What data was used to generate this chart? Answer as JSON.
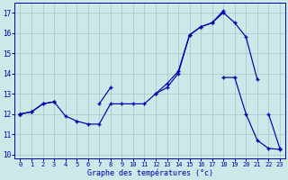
{
  "xlabel": "Graphe des températures (°c)",
  "background_color": "#cce8e8",
  "grid_color": "#aacccc",
  "line_color": "#0000aa",
  "hours": [
    0,
    1,
    2,
    3,
    4,
    5,
    6,
    7,
    8,
    9,
    10,
    11,
    12,
    13,
    14,
    15,
    16,
    17,
    18,
    19,
    20,
    21,
    22,
    23
  ],
  "curve1": [
    12.0,
    12.1,
    12.5,
    12.6,
    11.9,
    11.65,
    11.5,
    11.5,
    12.5,
    12.5,
    12.5,
    12.5,
    13.0,
    13.3,
    14.0,
    15.9,
    16.3,
    16.5,
    17.0,
    16.5,
    15.8,
    13.7,
    null,
    null
  ],
  "curve2": [
    12.0,
    null,
    null,
    null,
    null,
    null,
    null,
    null,
    null,
    null,
    null,
    null,
    null,
    null,
    null,
    null,
    null,
    null,
    null,
    null,
    null,
    null,
    12.0,
    10.3
  ],
  "curve3": [
    12.0,
    null,
    null,
    null,
    null,
    null,
    null,
    null,
    null,
    null,
    null,
    null,
    null,
    null,
    null,
    null,
    null,
    null,
    13.8,
    13.8,
    12.0,
    10.7,
    10.3,
    10.25
  ],
  "curve4": [
    12.0,
    12.1,
    12.5,
    12.6,
    null,
    null,
    null,
    12.5,
    13.3,
    null,
    null,
    null,
    13.0,
    13.5,
    14.1,
    15.9,
    16.3,
    16.5,
    17.1,
    null,
    null,
    null,
    null,
    null
  ],
  "ylim": [
    9.8,
    17.5
  ],
  "yticks": [
    10,
    11,
    12,
    13,
    14,
    15,
    16,
    17
  ],
  "xlim": [
    -0.5,
    23.5
  ],
  "xticks": [
    0,
    1,
    2,
    3,
    4,
    5,
    6,
    7,
    8,
    9,
    10,
    11,
    12,
    13,
    14,
    15,
    16,
    17,
    18,
    19,
    20,
    21,
    22,
    23
  ],
  "figsize": [
    3.2,
    2.0
  ],
  "dpi": 100
}
